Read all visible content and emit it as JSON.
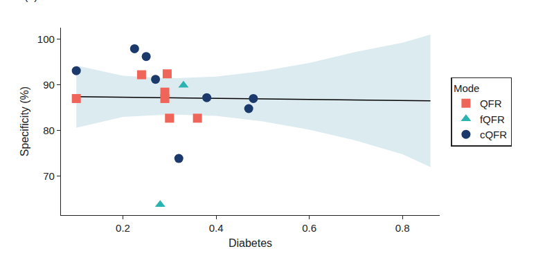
{
  "chart_data": {
    "type": "scatter",
    "title": "(b)",
    "x_label": "Diabetes",
    "y_label": "Specificity (%)",
    "legend_title": "Mode",
    "legend": "right",
    "grid": false,
    "xlim": [
      0.067,
      0.88
    ],
    "xticks": [
      0.2,
      0.4,
      0.6,
      0.8
    ],
    "ylim": [
      61.5,
      102.5
    ],
    "yticks": [
      70,
      80,
      90,
      100
    ],
    "series": [
      {
        "name": "cQFR",
        "color": "#1b3a6b",
        "marker": "circle",
        "x": [
          0.1,
          0.225,
          0.25,
          0.27,
          0.32,
          0.38,
          0.47,
          0.48
        ],
        "values": [
          93.1,
          97.9,
          96.2,
          91.2,
          73.9,
          87.2,
          84.8,
          87.0
        ]
      },
      {
        "name": "fQFR",
        "color": "#2bb3b1",
        "marker": "triangle-up",
        "x": [
          0.28,
          0.33
        ],
        "values": [
          63.8,
          89.9
        ]
      },
      {
        "name": "QFR",
        "color": "#f0655a",
        "marker": "square",
        "x": [
          0.1,
          0.24,
          0.29,
          0.29,
          0.295,
          0.3,
          0.36
        ],
        "values": [
          87.0,
          92.2,
          88.4,
          87.0,
          92.4,
          82.7,
          82.7
        ]
      }
    ],
    "trend": {
      "color": "#000000",
      "x": [
        0.1,
        0.86
      ],
      "values": [
        87.4,
        86.5
      ]
    },
    "band": {
      "color": "#dcebf0",
      "x": [
        0.1,
        0.2,
        0.3,
        0.4,
        0.5,
        0.6,
        0.7,
        0.8,
        0.86
      ],
      "lower": [
        80.6,
        83.0,
        83.5,
        83.2,
        82.0,
        80.2,
        77.8,
        74.8,
        72.0
      ],
      "upper": [
        94.2,
        92.0,
        91.4,
        91.8,
        93.0,
        94.8,
        97.2,
        99.2,
        101.0
      ]
    }
  }
}
